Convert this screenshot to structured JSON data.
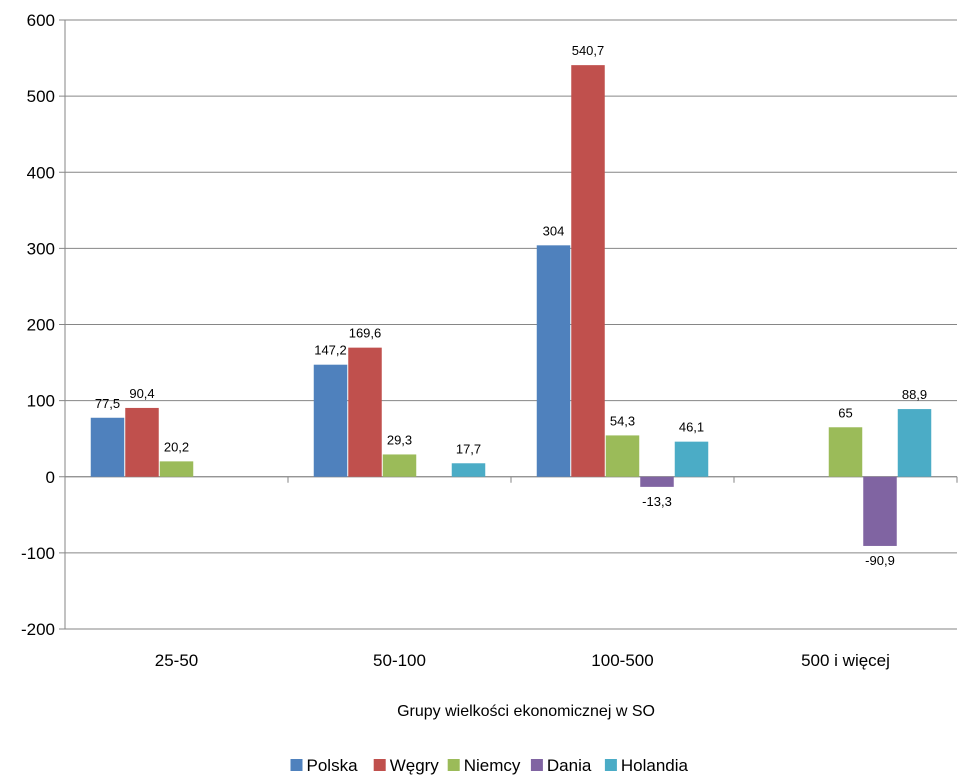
{
  "chart_data": {
    "type": "bar",
    "categories": [
      "25-50",
      "50-100",
      "100-500",
      "500 i więcej"
    ],
    "series": [
      {
        "name": "Polska",
        "color": "#4F81BD",
        "values": [
          77.5,
          147.2,
          304,
          null
        ],
        "labels": [
          "77,5",
          "147,2",
          "304",
          ""
        ]
      },
      {
        "name": "Węgry",
        "color": "#C0504D",
        "values": [
          90.4,
          169.6,
          540.7,
          null
        ],
        "labels": [
          "90,4",
          "169,6",
          "540,7",
          ""
        ]
      },
      {
        "name": "Niemcy",
        "color": "#9BBB59",
        "values": [
          20.2,
          29.3,
          54.3,
          65
        ],
        "labels": [
          "20,2",
          "29,3",
          "54,3",
          "65"
        ]
      },
      {
        "name": "Dania",
        "color": "#8064A2",
        "values": [
          null,
          null,
          -13.3,
          -90.9
        ],
        "labels": [
          "",
          "",
          "-13,3",
          "-90,9"
        ]
      },
      {
        "name": "Holandia",
        "color": "#4BACC6",
        "values": [
          null,
          17.7,
          46.1,
          88.9
        ],
        "labels": [
          "",
          "17,7",
          "46,1",
          "88,9"
        ]
      }
    ],
    "xlabel": "Grupy wielkości ekonomicznej w SO",
    "ylabel": "",
    "ylim": [
      -200,
      600
    ],
    "yticks": [
      -200,
      -100,
      0,
      100,
      200,
      300,
      400,
      500,
      600
    ],
    "grid": true,
    "legend_position": "bottom"
  }
}
